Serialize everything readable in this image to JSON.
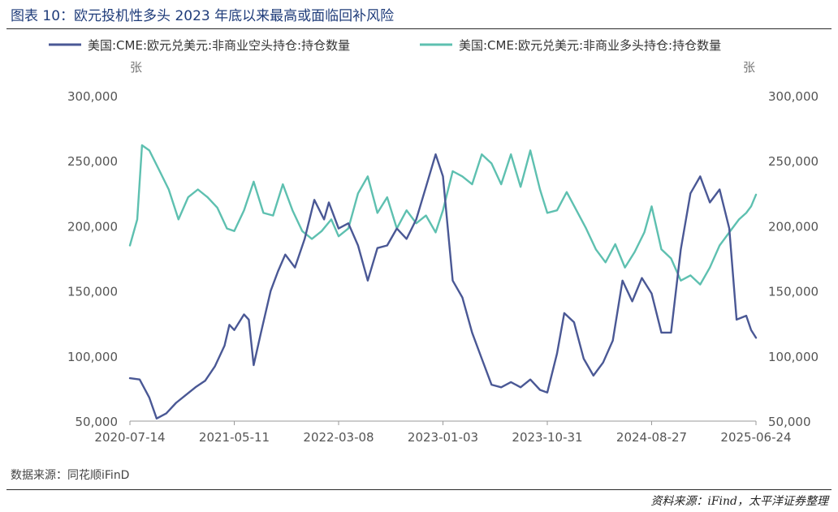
{
  "header": {
    "title": "图表 10：欧元投机性多头 2023 年底以来最高或面临回补风险"
  },
  "footer": {
    "source_left": "数据来源：同花顺iFinD",
    "source_right": "资料来源：iFind，太平洋证券整理"
  },
  "chart_data": {
    "type": "line",
    "left_unit": "张",
    "right_unit": "张",
    "ylim": [
      50000,
      300000
    ],
    "yticks": [
      50000,
      100000,
      150000,
      200000,
      250000,
      300000
    ],
    "ytick_labels": [
      "50,000",
      "100,000",
      "150,000",
      "200,000",
      "250,000",
      "300,000"
    ],
    "xlim": [
      "2020-07-14",
      "2025-06-24"
    ],
    "xticks": [
      "2020-07-14",
      "2021-05-11",
      "2022-03-08",
      "2023-01-03",
      "2023-10-31",
      "2024-08-27",
      "2025-06-24"
    ],
    "legend_position": "top",
    "grid": false,
    "series": [
      {
        "name": "美国:CME:欧元兑美元:非商业空头持仓:持仓数量",
        "color": "#4a5895",
        "axis": "left",
        "points": [
          [
            "2020-07-14",
            83000
          ],
          [
            "2020-08-11",
            82000
          ],
          [
            "2020-09-08",
            68000
          ],
          [
            "2020-09-29",
            52000
          ],
          [
            "2020-10-27",
            56000
          ],
          [
            "2020-11-24",
            64000
          ],
          [
            "2020-12-22",
            70000
          ],
          [
            "2021-01-19",
            76000
          ],
          [
            "2021-02-16",
            81000
          ],
          [
            "2021-03-16",
            92000
          ],
          [
            "2021-04-13",
            108000
          ],
          [
            "2021-04-27",
            124000
          ],
          [
            "2021-05-11",
            120000
          ],
          [
            "2021-06-08",
            132000
          ],
          [
            "2021-06-22",
            128000
          ],
          [
            "2021-07-06",
            93000
          ],
          [
            "2021-07-27",
            118000
          ],
          [
            "2021-08-24",
            150000
          ],
          [
            "2021-09-14",
            165000
          ],
          [
            "2021-10-05",
            178000
          ],
          [
            "2021-11-02",
            168000
          ],
          [
            "2021-11-30",
            190000
          ],
          [
            "2021-12-28",
            220000
          ],
          [
            "2022-01-25",
            205000
          ],
          [
            "2022-02-08",
            218000
          ],
          [
            "2022-03-08",
            198000
          ],
          [
            "2022-04-05",
            202000
          ],
          [
            "2022-05-03",
            185000
          ],
          [
            "2022-05-31",
            158000
          ],
          [
            "2022-06-28",
            183000
          ],
          [
            "2022-07-26",
            185000
          ],
          [
            "2022-08-23",
            198000
          ],
          [
            "2022-09-20",
            190000
          ],
          [
            "2022-10-18",
            205000
          ],
          [
            "2022-11-15",
            230000
          ],
          [
            "2022-12-13",
            255000
          ],
          [
            "2023-01-03",
            238000
          ],
          [
            "2023-01-31",
            158000
          ],
          [
            "2023-02-28",
            145000
          ],
          [
            "2023-03-28",
            118000
          ],
          [
            "2023-04-25",
            98000
          ],
          [
            "2023-05-23",
            78000
          ],
          [
            "2023-06-20",
            76000
          ],
          [
            "2023-07-18",
            80000
          ],
          [
            "2023-08-15",
            76000
          ],
          [
            "2023-09-12",
            82000
          ],
          [
            "2023-10-10",
            74000
          ],
          [
            "2023-10-31",
            72000
          ],
          [
            "2023-11-28",
            102000
          ],
          [
            "2023-12-19",
            133000
          ],
          [
            "2024-01-16",
            126000
          ],
          [
            "2024-02-13",
            98000
          ],
          [
            "2024-03-12",
            85000
          ],
          [
            "2024-04-09",
            95000
          ],
          [
            "2024-05-07",
            112000
          ],
          [
            "2024-06-04",
            158000
          ],
          [
            "2024-07-02",
            142000
          ],
          [
            "2024-07-30",
            160000
          ],
          [
            "2024-08-27",
            148000
          ],
          [
            "2024-09-24",
            118000
          ],
          [
            "2024-10-22",
            118000
          ],
          [
            "2024-11-19",
            182000
          ],
          [
            "2024-12-17",
            225000
          ],
          [
            "2025-01-14",
            238000
          ],
          [
            "2025-02-11",
            218000
          ],
          [
            "2025-03-11",
            228000
          ],
          [
            "2025-04-08",
            198000
          ],
          [
            "2025-04-29",
            128000
          ],
          [
            "2025-05-27",
            131000
          ],
          [
            "2025-06-10",
            120000
          ],
          [
            "2025-06-24",
            114000
          ]
        ]
      },
      {
        "name": "美国:CME:欧元兑美元:非商业多头持仓:持仓数量",
        "color": "#5ec0b0",
        "axis": "right",
        "points": [
          [
            "2020-07-14",
            185000
          ],
          [
            "2020-08-04",
            205000
          ],
          [
            "2020-08-18",
            262000
          ],
          [
            "2020-09-08",
            258000
          ],
          [
            "2020-10-06",
            243000
          ],
          [
            "2020-11-03",
            228000
          ],
          [
            "2020-12-01",
            205000
          ],
          [
            "2020-12-29",
            222000
          ],
          [
            "2021-01-26",
            228000
          ],
          [
            "2021-02-23",
            222000
          ],
          [
            "2021-03-23",
            214000
          ],
          [
            "2021-04-20",
            198000
          ],
          [
            "2021-05-11",
            196000
          ],
          [
            "2021-06-08",
            212000
          ],
          [
            "2021-07-06",
            234000
          ],
          [
            "2021-08-03",
            210000
          ],
          [
            "2021-08-31",
            208000
          ],
          [
            "2021-09-28",
            232000
          ],
          [
            "2021-10-26",
            212000
          ],
          [
            "2021-11-23",
            196000
          ],
          [
            "2021-12-21",
            190000
          ],
          [
            "2022-01-18",
            196000
          ],
          [
            "2022-02-15",
            205000
          ],
          [
            "2022-03-08",
            192000
          ],
          [
            "2022-04-05",
            198000
          ],
          [
            "2022-05-03",
            225000
          ],
          [
            "2022-05-31",
            238000
          ],
          [
            "2022-06-28",
            210000
          ],
          [
            "2022-07-26",
            222000
          ],
          [
            "2022-08-23",
            198000
          ],
          [
            "2022-09-20",
            212000
          ],
          [
            "2022-10-18",
            202000
          ],
          [
            "2022-11-15",
            208000
          ],
          [
            "2022-12-13",
            195000
          ],
          [
            "2023-01-03",
            212000
          ],
          [
            "2023-01-31",
            242000
          ],
          [
            "2023-02-28",
            238000
          ],
          [
            "2023-03-28",
            232000
          ],
          [
            "2023-04-25",
            255000
          ],
          [
            "2023-05-23",
            248000
          ],
          [
            "2023-06-20",
            232000
          ],
          [
            "2023-07-18",
            255000
          ],
          [
            "2023-08-15",
            230000
          ],
          [
            "2023-09-12",
            258000
          ],
          [
            "2023-10-10",
            228000
          ],
          [
            "2023-10-31",
            210000
          ],
          [
            "2023-11-28",
            212000
          ],
          [
            "2023-12-26",
            226000
          ],
          [
            "2024-01-23",
            212000
          ],
          [
            "2024-02-20",
            198000
          ],
          [
            "2024-03-19",
            182000
          ],
          [
            "2024-04-16",
            172000
          ],
          [
            "2024-05-14",
            186000
          ],
          [
            "2024-06-11",
            168000
          ],
          [
            "2024-07-09",
            180000
          ],
          [
            "2024-08-06",
            195000
          ],
          [
            "2024-08-27",
            215000
          ],
          [
            "2024-09-24",
            182000
          ],
          [
            "2024-10-22",
            175000
          ],
          [
            "2024-11-19",
            158000
          ],
          [
            "2024-12-17",
            162000
          ],
          [
            "2025-01-14",
            155000
          ],
          [
            "2025-02-11",
            168000
          ],
          [
            "2025-03-11",
            185000
          ],
          [
            "2025-04-08",
            195000
          ],
          [
            "2025-05-06",
            205000
          ],
          [
            "2025-05-27",
            210000
          ],
          [
            "2025-06-10",
            215000
          ],
          [
            "2025-06-24",
            224000
          ]
        ]
      }
    ]
  }
}
